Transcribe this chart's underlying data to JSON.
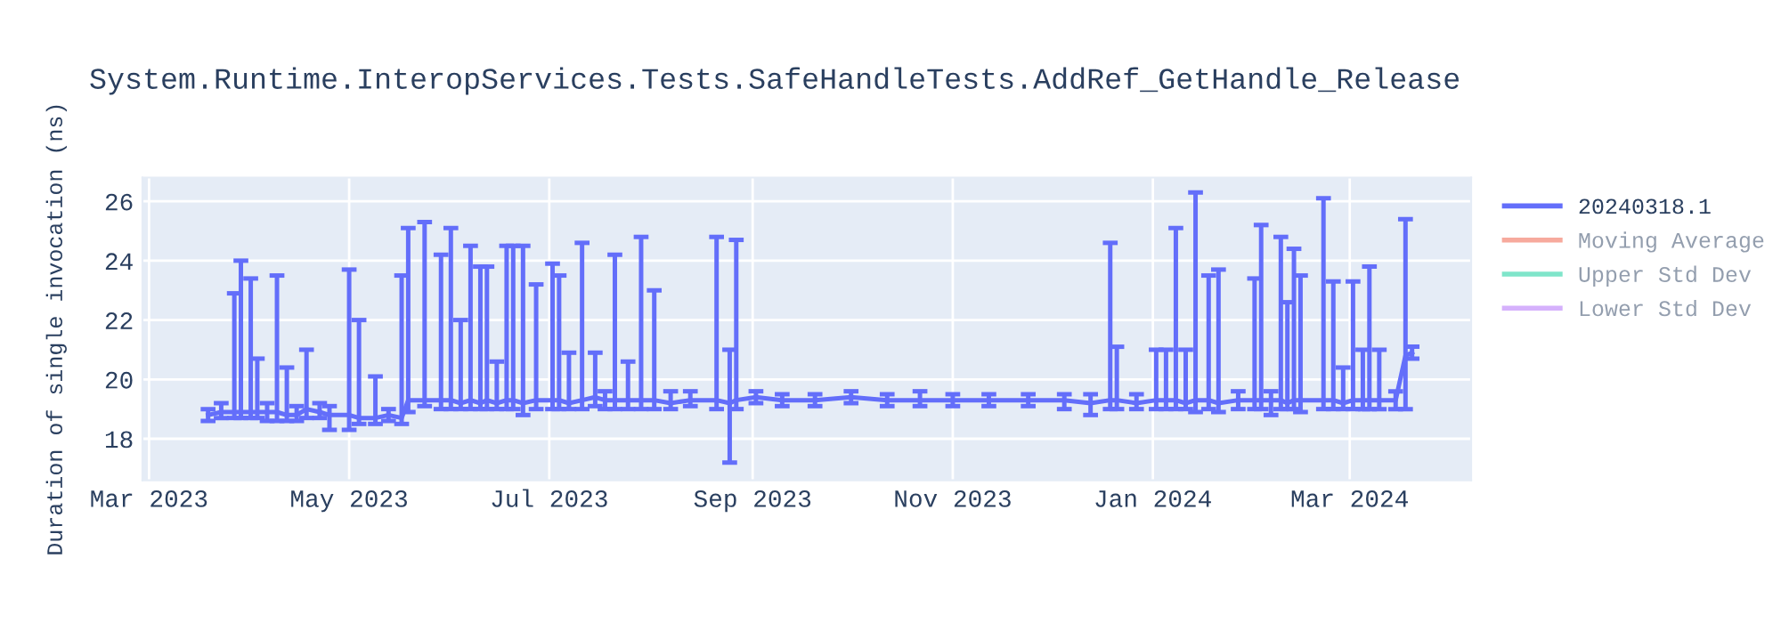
{
  "chart_data": {
    "type": "line",
    "title": "System.Runtime.InteropServices.Tests.SafeHandleTests.AddRef_GetHandle_Release",
    "ylabel": "Duration of single invocation (ns)",
    "x": [
      "2023-03-19",
      "2023-03-23",
      "2023-03-27",
      "2023-03-29",
      "2023-04-01",
      "2023-04-03",
      "2023-04-06",
      "2023-04-09",
      "2023-04-12",
      "2023-04-15",
      "2023-04-18",
      "2023-04-22",
      "2023-04-25",
      "2023-05-01",
      "2023-05-04",
      "2023-05-09",
      "2023-05-13",
      "2023-05-17",
      "2023-05-19",
      "2023-05-24",
      "2023-05-29",
      "2023-06-01",
      "2023-06-04",
      "2023-06-07",
      "2023-06-10",
      "2023-06-12",
      "2023-06-15",
      "2023-06-18",
      "2023-06-20",
      "2023-06-23",
      "2023-06-27",
      "2023-07-02",
      "2023-07-04",
      "2023-07-07",
      "2023-07-11",
      "2023-07-15",
      "2023-07-18",
      "2023-07-21",
      "2023-07-25",
      "2023-07-29",
      "2023-08-02",
      "2023-08-07",
      "2023-08-13",
      "2023-08-21",
      "2023-08-25",
      "2023-08-27",
      "2023-09-02",
      "2023-09-10",
      "2023-09-20",
      "2023-10-01",
      "2023-10-12",
      "2023-10-22",
      "2023-11-01",
      "2023-11-12",
      "2023-11-24",
      "2023-12-05",
      "2023-12-13",
      "2023-12-19",
      "2023-12-21",
      "2023-12-27",
      "2024-01-02",
      "2024-01-05",
      "2024-01-08",
      "2024-01-11",
      "2024-01-14",
      "2024-01-18",
      "2024-01-21",
      "2024-01-27",
      "2024-02-01",
      "2024-02-03",
      "2024-02-06",
      "2024-02-09",
      "2024-02-11",
      "2024-02-13",
      "2024-02-15",
      "2024-02-22",
      "2024-02-25",
      "2024-02-28",
      "2024-03-02",
      "2024-03-05",
      "2024-03-07",
      "2024-03-10",
      "2024-03-15",
      "2024-03-18",
      "2024-03-20"
    ],
    "series": [
      {
        "name": "20240318.1",
        "color": "#636efa",
        "values": [
          18.8,
          18.9,
          18.9,
          18.9,
          18.9,
          18.9,
          18.9,
          18.9,
          18.8,
          18.8,
          19.0,
          18.9,
          18.8,
          18.8,
          18.7,
          18.7,
          18.8,
          18.7,
          19.3,
          19.3,
          19.3,
          19.3,
          19.2,
          19.3,
          19.2,
          19.3,
          19.2,
          19.3,
          19.3,
          19.2,
          19.3,
          19.3,
          19.3,
          19.2,
          19.3,
          19.4,
          19.3,
          19.3,
          19.3,
          19.3,
          19.3,
          19.2,
          19.3,
          19.3,
          19.2,
          19.3,
          19.4,
          19.3,
          19.3,
          19.4,
          19.3,
          19.3,
          19.3,
          19.3,
          19.3,
          19.3,
          19.2,
          19.3,
          19.3,
          19.2,
          19.3,
          19.3,
          19.3,
          19.2,
          19.3,
          19.3,
          19.2,
          19.3,
          19.3,
          19.3,
          19.3,
          19.3,
          19.2,
          19.3,
          19.3,
          19.3,
          19.3,
          19.2,
          19.3,
          19.3,
          19.3,
          19.3,
          19.3,
          20.8,
          20.9
        ],
        "errors": [
          [
            18.6,
            19.0
          ],
          [
            18.7,
            19.2
          ],
          [
            18.7,
            22.9
          ],
          [
            18.7,
            24.0
          ],
          [
            18.7,
            23.4
          ],
          [
            18.7,
            20.7
          ],
          [
            18.6,
            19.2
          ],
          [
            18.6,
            23.5
          ],
          [
            18.6,
            20.4
          ],
          [
            18.6,
            19.1
          ],
          [
            18.7,
            21.0
          ],
          [
            18.7,
            19.2
          ],
          [
            18.3,
            19.1
          ],
          [
            18.3,
            23.7
          ],
          [
            18.5,
            22.0
          ],
          [
            18.5,
            20.1
          ],
          [
            18.6,
            19.0
          ],
          [
            18.5,
            23.5
          ],
          [
            18.9,
            25.1
          ],
          [
            19.1,
            25.3
          ],
          [
            19.0,
            24.2
          ],
          [
            19.0,
            25.1
          ],
          [
            19.0,
            22.0
          ],
          [
            19.0,
            24.5
          ],
          [
            19.0,
            23.8
          ],
          [
            19.0,
            23.8
          ],
          [
            19.0,
            20.6
          ],
          [
            19.0,
            24.5
          ],
          [
            19.0,
            24.5
          ],
          [
            18.8,
            24.5
          ],
          [
            19.0,
            23.2
          ],
          [
            19.0,
            23.9
          ],
          [
            19.0,
            23.5
          ],
          [
            19.0,
            20.9
          ],
          [
            19.0,
            24.6
          ],
          [
            19.1,
            20.9
          ],
          [
            19.0,
            19.6
          ],
          [
            19.0,
            24.2
          ],
          [
            19.0,
            20.6
          ],
          [
            19.0,
            24.8
          ],
          [
            19.0,
            23.0
          ],
          [
            19.0,
            19.6
          ],
          [
            19.1,
            19.6
          ],
          [
            19.0,
            24.8
          ],
          [
            17.2,
            21.0
          ],
          [
            19.0,
            24.7
          ],
          [
            19.2,
            19.6
          ],
          [
            19.1,
            19.5
          ],
          [
            19.1,
            19.5
          ],
          [
            19.2,
            19.6
          ],
          [
            19.1,
            19.5
          ],
          [
            19.1,
            19.6
          ],
          [
            19.1,
            19.5
          ],
          [
            19.1,
            19.5
          ],
          [
            19.1,
            19.5
          ],
          [
            19.0,
            19.5
          ],
          [
            18.8,
            19.5
          ],
          [
            19.0,
            24.6
          ],
          [
            19.0,
            21.1
          ],
          [
            19.0,
            19.5
          ],
          [
            19.0,
            21.0
          ],
          [
            19.0,
            21.0
          ],
          [
            19.0,
            25.1
          ],
          [
            19.0,
            21.0
          ],
          [
            18.9,
            26.3
          ],
          [
            19.0,
            23.5
          ],
          [
            18.9,
            23.7
          ],
          [
            19.0,
            19.6
          ],
          [
            19.0,
            23.4
          ],
          [
            19.0,
            25.2
          ],
          [
            18.8,
            19.6
          ],
          [
            19.0,
            24.8
          ],
          [
            19.0,
            22.6
          ],
          [
            19.0,
            24.4
          ],
          [
            18.9,
            23.5
          ],
          [
            19.0,
            26.1
          ],
          [
            19.0,
            23.3
          ],
          [
            19.0,
            20.4
          ],
          [
            19.0,
            23.3
          ],
          [
            19.0,
            21.0
          ],
          [
            19.0,
            23.8
          ],
          [
            19.0,
            21.0
          ],
          [
            19.0,
            19.6
          ],
          [
            19.0,
            25.4
          ],
          [
            20.7,
            21.1
          ]
        ]
      },
      {
        "name": "Moving Average",
        "color": "#ef553b",
        "values": [
          null,
          null,
          null,
          null,
          null,
          null,
          null,
          null,
          null,
          null,
          null,
          null,
          null,
          null,
          null,
          null,
          null,
          null,
          null,
          null,
          null,
          null,
          null,
          null,
          null,
          null,
          null,
          null,
          null,
          null,
          null,
          null,
          null,
          null,
          null,
          null,
          null,
          null,
          null,
          null,
          null,
          null,
          null,
          null,
          null,
          null,
          null,
          null,
          null,
          null,
          null,
          null,
          null,
          null,
          null,
          null,
          null,
          null,
          null,
          null,
          null,
          null,
          null,
          null,
          null,
          null,
          null,
          null,
          null,
          null,
          null,
          null,
          null,
          null,
          null,
          null,
          null,
          null,
          null,
          null,
          null,
          null,
          null,
          null,
          null
        ]
      },
      {
        "name": "Upper Std Dev",
        "color": "#00cc96",
        "values": [
          null,
          null,
          null,
          null,
          null,
          null,
          null,
          null,
          null,
          null,
          null,
          null,
          null,
          null,
          null,
          null,
          null,
          null,
          null,
          null,
          null,
          null,
          null,
          null,
          null,
          null,
          null,
          null,
          null,
          null,
          null,
          null,
          null,
          null,
          null,
          null,
          null,
          null,
          null,
          null,
          null,
          null,
          null,
          null,
          null,
          null,
          null,
          null,
          null,
          null,
          null,
          null,
          null,
          null,
          null,
          null,
          null,
          null,
          null,
          null,
          null,
          null,
          null,
          null,
          null,
          null,
          null,
          null,
          null,
          null,
          null,
          null,
          null,
          null,
          null,
          null,
          null,
          null,
          null,
          null,
          null,
          null,
          null,
          null,
          null
        ]
      },
      {
        "name": "Lower Std Dev",
        "color": "#ab63fa",
        "values": [
          null,
          null,
          null,
          null,
          null,
          null,
          null,
          null,
          null,
          null,
          null,
          null,
          null,
          null,
          null,
          null,
          null,
          null,
          null,
          null,
          null,
          null,
          null,
          null,
          null,
          null,
          null,
          null,
          null,
          null,
          null,
          null,
          null,
          null,
          null,
          null,
          null,
          null,
          null,
          null,
          null,
          null,
          null,
          null,
          null,
          null,
          null,
          null,
          null,
          null,
          null,
          null,
          null,
          null,
          null,
          null,
          null,
          null,
          null,
          null,
          null,
          null,
          null,
          null,
          null,
          null,
          null,
          null,
          null,
          null,
          null,
          null,
          null,
          null,
          null,
          null,
          null,
          null,
          null,
          null,
          null,
          null,
          null,
          null,
          null
        ]
      }
    ],
    "xlim": [
      "2023-02-27",
      "2024-04-07"
    ],
    "xticks": [
      {
        "value": "2023-03-01",
        "label": "Mar 2023"
      },
      {
        "value": "2023-05-01",
        "label": "May 2023"
      },
      {
        "value": "2023-07-01",
        "label": "Jul 2023"
      },
      {
        "value": "2023-09-01",
        "label": "Sep 2023"
      },
      {
        "value": "2023-11-01",
        "label": "Nov 2023"
      },
      {
        "value": "2024-01-01",
        "label": "Jan 2024"
      },
      {
        "value": "2024-03-01",
        "label": "Mar 2024"
      }
    ],
    "ylim": [
      16.6,
      26.8
    ],
    "yticks": [
      18,
      20,
      22,
      24,
      26
    ],
    "grid": true,
    "legend": "top right",
    "marker": "none",
    "line_style": "solid"
  }
}
